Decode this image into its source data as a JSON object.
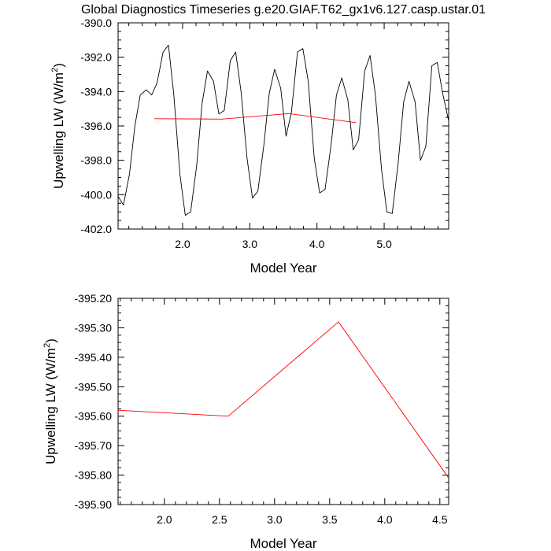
{
  "title": "Global Diagnostics Timeseries g.e20.GIAF.T62_gx1v6.127.casp.ustar.01",
  "chart_data": [
    {
      "type": "line",
      "xlabel": "Model Year",
      "ylabel": "Upwelling LW (W/m",
      "ylabel_sup": "2",
      "ylabel_close": ")",
      "xlim": [
        1.04,
        5.96
      ],
      "ylim": [
        -402.0,
        -390.0
      ],
      "xticks": [
        2.0,
        3.0,
        4.0,
        5.0
      ],
      "xtick_labels": [
        "2.0",
        "3.0",
        "4.0",
        "5.0"
      ],
      "yticks": [
        -402.0,
        -400.0,
        -398.0,
        -396.0,
        -394.0,
        -392.0,
        -390.0
      ],
      "ytick_labels": [
        "-402.0",
        "-400.0",
        "-398.0",
        "-396.0",
        "-394.0",
        "-392.0",
        "-390.0"
      ],
      "series": [
        {
          "color": "#000000",
          "x": [
            1.04,
            1.12,
            1.21,
            1.29,
            1.37,
            1.46,
            1.54,
            1.62,
            1.71,
            1.79,
            1.87,
            1.96,
            2.04,
            2.12,
            2.21,
            2.29,
            2.37,
            2.46,
            2.54,
            2.62,
            2.71,
            2.79,
            2.87,
            2.96,
            3.04,
            3.12,
            3.21,
            3.29,
            3.37,
            3.46,
            3.54,
            3.62,
            3.71,
            3.79,
            3.87,
            3.96,
            4.04,
            4.12,
            4.21,
            4.29,
            4.37,
            4.46,
            4.54,
            4.62,
            4.71,
            4.79,
            4.87,
            4.96,
            5.04,
            5.12,
            5.21,
            5.29,
            5.37,
            5.46,
            5.54,
            5.62,
            5.71,
            5.79,
            5.87,
            5.96
          ],
          "y": [
            -400.1,
            -400.6,
            -398.8,
            -396.0,
            -394.2,
            -393.9,
            -394.2,
            -393.5,
            -391.7,
            -391.3,
            -394.2,
            -398.8,
            -401.2,
            -401.0,
            -398.3,
            -394.7,
            -392.8,
            -393.4,
            -395.3,
            -395.1,
            -392.2,
            -391.7,
            -394.0,
            -397.9,
            -400.2,
            -399.8,
            -397.1,
            -394.1,
            -392.7,
            -393.8,
            -396.6,
            -395.2,
            -391.7,
            -391.5,
            -393.4,
            -397.9,
            -399.9,
            -399.7,
            -397.1,
            -394.2,
            -393.2,
            -394.5,
            -397.4,
            -396.8,
            -392.8,
            -391.9,
            -394.2,
            -398.5,
            -401.0,
            -401.1,
            -398.1,
            -394.6,
            -393.4,
            -394.6,
            -398.0,
            -397.2,
            -392.5,
            -392.3,
            -394.1,
            -395.7
          ]
        },
        {
          "color": "#ff0000",
          "x": [
            1.58,
            2.58,
            3.58,
            4.58
          ],
          "y": [
            -395.58,
            -395.6,
            -395.28,
            -395.81
          ]
        }
      ]
    },
    {
      "type": "line",
      "xlabel": "Model Year",
      "ylabel": "Upwelling LW (W/m",
      "ylabel_sup": "2",
      "ylabel_close": ")",
      "xlim": [
        1.58,
        4.58
      ],
      "ylim": [
        -395.9,
        -395.2
      ],
      "xticks": [
        2.0,
        2.5,
        3.0,
        3.5,
        4.0,
        4.5
      ],
      "xtick_labels": [
        "2.0",
        "2.5",
        "3.0",
        "3.5",
        "4.0",
        "4.5"
      ],
      "yticks": [
        -395.9,
        -395.8,
        -395.7,
        -395.6,
        -395.5,
        -395.4,
        -395.3,
        -395.2
      ],
      "ytick_labels": [
        "-395.90",
        "-395.80",
        "-395.70",
        "-395.60",
        "-395.50",
        "-395.40",
        "-395.30",
        "-395.20"
      ],
      "series": [
        {
          "color": "#ff0000",
          "x": [
            1.58,
            2.58,
            3.58,
            4.58
          ],
          "y": [
            -395.58,
            -395.6,
            -395.28,
            -395.81
          ]
        }
      ]
    }
  ]
}
